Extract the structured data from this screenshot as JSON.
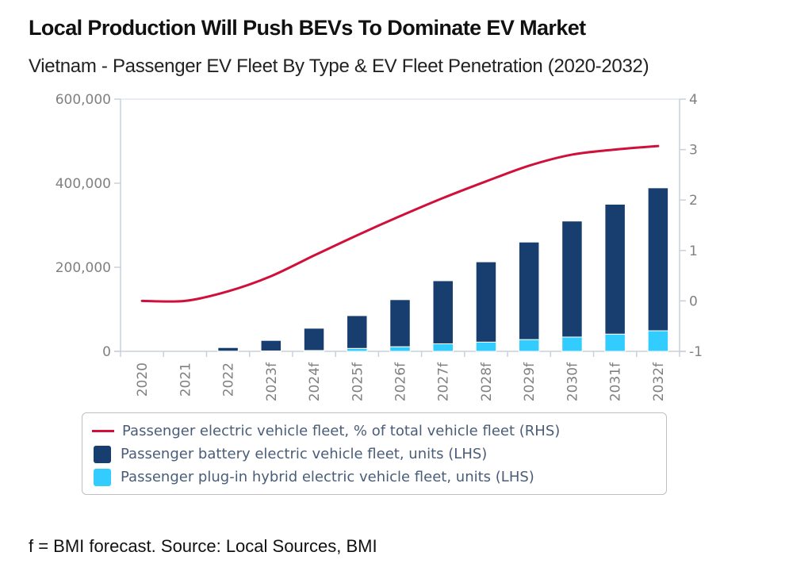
{
  "header": {
    "title": "Local Production Will Push BEVs To Dominate EV Market",
    "subtitle": "Vietnam - Passenger EV Fleet By Type & EV Fleet Penetration (2020-2032)"
  },
  "footer": {
    "note": "f = BMI forecast. Source: Local Sources, BMI"
  },
  "chart_data": {
    "type": "bar",
    "subtype": "stacked-bar-with-line",
    "title": "Local Production Will Push BEVs To Dominate EV Market",
    "subtitle": "Vietnam - Passenger EV Fleet By Type & EV Fleet Penetration (2020-2032)",
    "categories": [
      "2020",
      "2021",
      "2022",
      "2023f",
      "2024f",
      "2025f",
      "2026f",
      "2027f",
      "2028f",
      "2029f",
      "2030f",
      "2031f",
      "2032f"
    ],
    "series": [
      {
        "name": "Passenger plug-in hybrid electric vehicle fleet, units (LHS)",
        "type": "bar",
        "axis": "left",
        "color": "#33ccff",
        "values": [
          0,
          0,
          500,
          1000,
          2000,
          7000,
          11000,
          18000,
          22000,
          28000,
          34000,
          41000,
          49000
        ]
      },
      {
        "name": "Passenger battery electric vehicle fleet, units (LHS)",
        "type": "bar",
        "axis": "left",
        "color": "#173e6e",
        "values": [
          0,
          0,
          8500,
          25000,
          53000,
          78000,
          112000,
          150000,
          191000,
          232000,
          276000,
          309000,
          340000
        ]
      },
      {
        "name": "Passenger electric vehicle fleet, % of total vehicle fleet (RHS)",
        "type": "line",
        "axis": "right",
        "color": "#d0103a",
        "values": [
          0.0,
          0.0,
          0.19,
          0.49,
          0.9,
          1.3,
          1.68,
          2.04,
          2.37,
          2.68,
          2.9,
          3.0,
          3.07
        ]
      }
    ],
    "legend_order": [
      2,
      1,
      0
    ],
    "left_axis": {
      "label": "",
      "ylim": [
        0,
        600000
      ],
      "ticks": [
        0,
        200000,
        400000,
        600000
      ],
      "tick_labels": [
        "0",
        "200,000",
        "400,000",
        "600,000"
      ]
    },
    "right_axis": {
      "label": "",
      "ylim": [
        -1,
        4
      ],
      "ticks": [
        -1,
        0,
        1,
        2,
        3,
        4
      ],
      "tick_labels": [
        "-1",
        "0",
        "1",
        "2",
        "3",
        "4"
      ]
    },
    "xlabel": "",
    "grid": false,
    "legend_position": "bottom"
  }
}
